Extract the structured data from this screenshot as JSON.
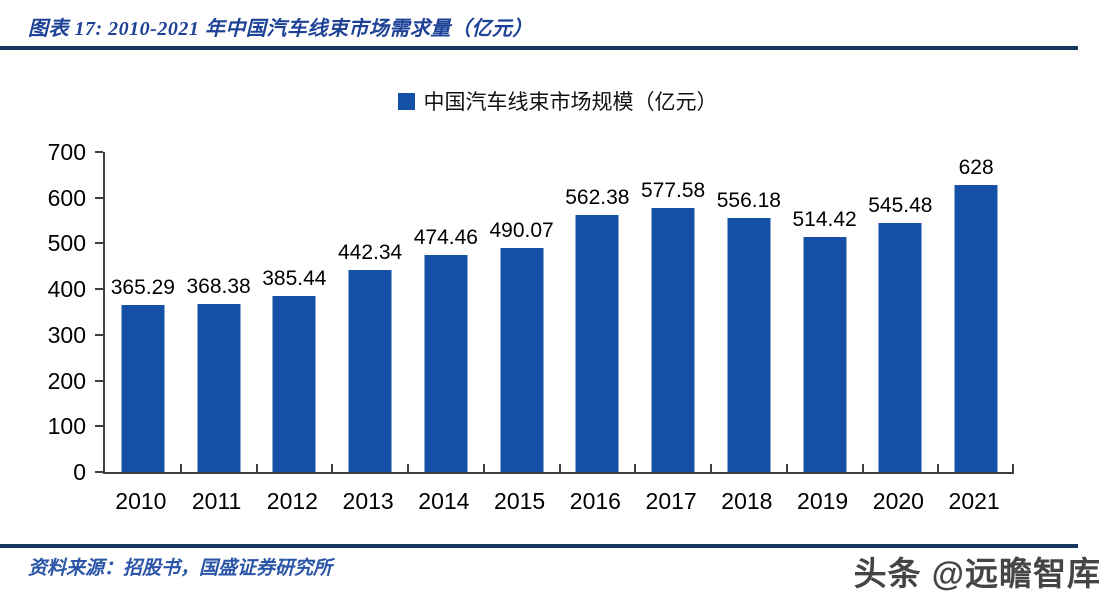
{
  "header": {
    "title": "图表 17:  2010-2021 年中国汽车线束市场需求量（亿元）"
  },
  "footer": {
    "source": "资料来源：招股书，国盛证券研究所",
    "watermark": "头条 @远瞻智库"
  },
  "colors": {
    "bar": "#1450a5",
    "rule": "#17365d",
    "title_text": "#1e4296",
    "source_text": "#2b55a7",
    "axis": "#3f3f3f"
  },
  "chart_data": {
    "type": "bar",
    "title": "图表 17:  2010-2021 年中国汽车线束市场需求量（亿元）",
    "legend": [
      "中国汽车线束市场规模（亿元）"
    ],
    "legend_position": "top-center",
    "categories": [
      "2010",
      "2011",
      "2012",
      "2013",
      "2014",
      "2015",
      "2016",
      "2017",
      "2018",
      "2019",
      "2020",
      "2021"
    ],
    "values": [
      365.29,
      368.38,
      385.44,
      442.34,
      474.46,
      490.07,
      562.38,
      577.58,
      556.18,
      514.42,
      545.48,
      628
    ],
    "labels": [
      "365.29",
      "368.38",
      "385.44",
      "442.34",
      "474.46",
      "490.07",
      "562.38",
      "577.58",
      "556.18",
      "514.42",
      "545.48",
      "628"
    ],
    "xlabel": "",
    "ylabel": "",
    "ylim": [
      0,
      700
    ],
    "yticks": [
      0,
      100,
      200,
      300,
      400,
      500,
      600,
      700
    ],
    "grid": false,
    "bar_color": "#1450a5"
  }
}
